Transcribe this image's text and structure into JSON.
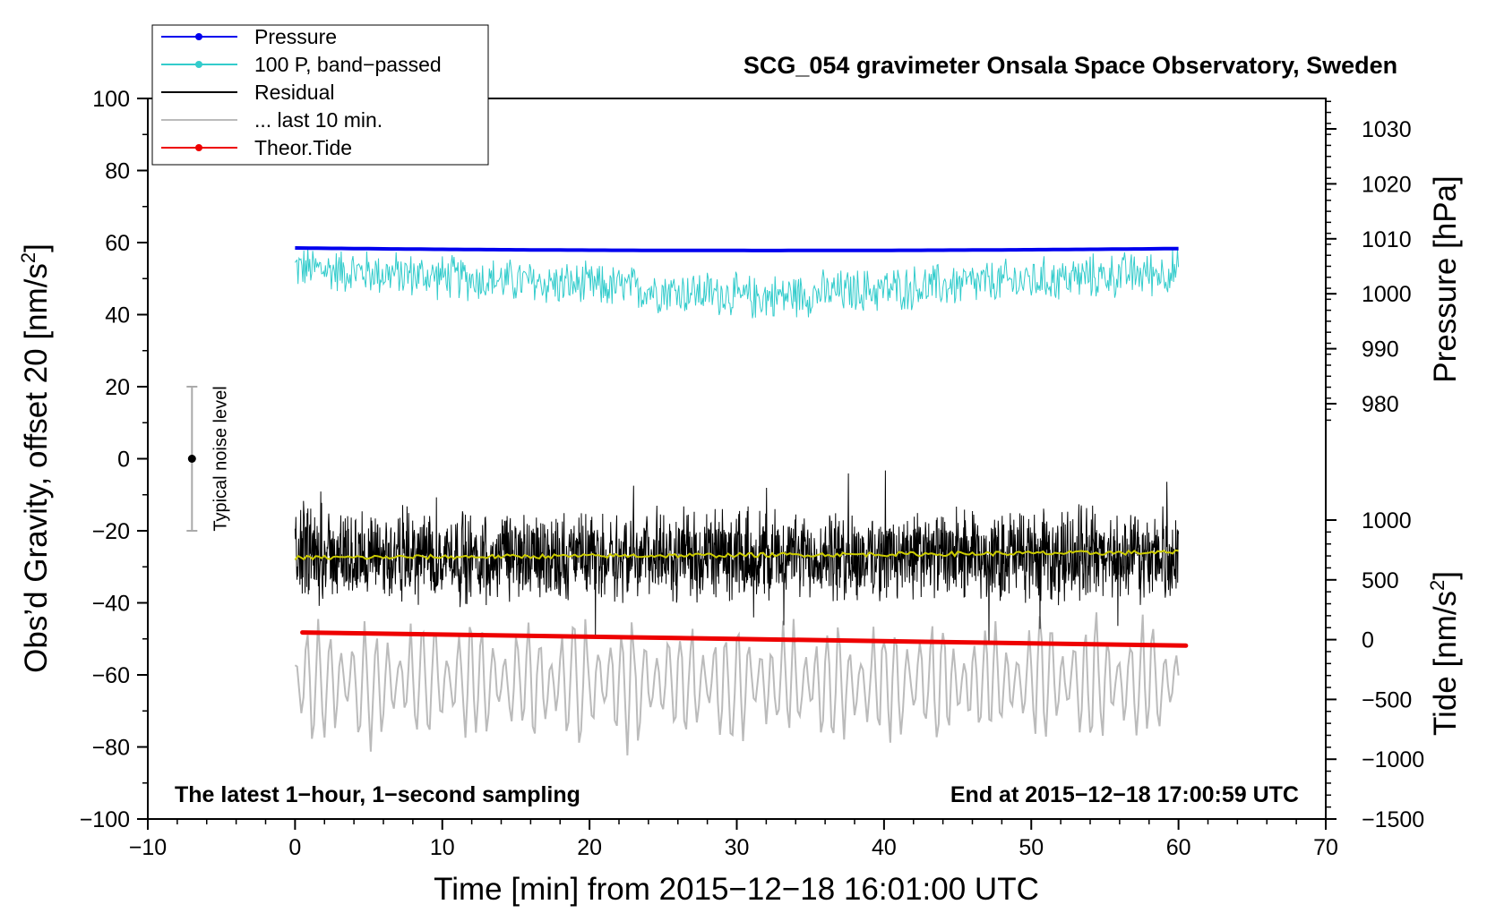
{
  "chart_data": {
    "type": "line",
    "title": "SCG_054 gravimeter Onsala Space Observatory, Sweden",
    "xlabel": "Time [min] from 2015−12−18 16:01:00 UTC",
    "ylabel_left": "Obs’d Gravity, offset 20 [nm/s",
    "ylabel_left_sup": "2",
    "ylabel_left_end": "]",
    "ylabel_right_pressure": "Pressure [hPa]",
    "ylabel_right_tide": "Tide [nm/s",
    "ylabel_right_tide_sup": "2",
    "ylabel_right_tide_end": "]",
    "xlim": [
      -10,
      70
    ],
    "ylim": [
      -100,
      100
    ],
    "x_ticks": [
      -10,
      0,
      10,
      20,
      30,
      40,
      50,
      60,
      70
    ],
    "x_tick_labels": [
      "−10",
      "0",
      "10",
      "20",
      "30",
      "40",
      "50",
      "60",
      "70"
    ],
    "y_ticks": [
      100,
      80,
      60,
      40,
      20,
      0,
      -20,
      -40,
      -60,
      -80,
      -100
    ],
    "y_tick_labels": [
      "100",
      "80",
      "60",
      "40",
      "20",
      "0",
      "−20",
      "−40",
      "−60",
      "−80",
      "−100"
    ],
    "pressure_ticks": [
      1030,
      1020,
      1010,
      1000,
      990,
      980
    ],
    "pressure_tick_labels": [
      "1030",
      "1020",
      "1010",
      "1000",
      "990",
      "980"
    ],
    "tide_ticks": [
      1000,
      500,
      0,
      -500,
      -1000,
      -1500
    ],
    "tide_tick_labels": [
      "1000",
      "500",
      "0",
      "−500",
      "−1000",
      "−1500"
    ],
    "legend": [
      {
        "label": "Pressure",
        "color": "#0000ee",
        "marker": true
      },
      {
        "label": "100 P, band−passed",
        "color": "#33cccc",
        "marker": true
      },
      {
        "label": "Residual",
        "color": "#000000",
        "marker": false
      },
      {
        "label": "... last 10 min.",
        "color": "#bbbbbb",
        "marker": false
      },
      {
        "label": "Theor.Tide",
        "color": "#ee0000",
        "marker": true
      }
    ],
    "legend_position": "top-left",
    "series": [
      {
        "name": "Pressure",
        "color": "#0000ee",
        "x_range": [
          0,
          60
        ],
        "y_start": 58.5,
        "y_mid": 57.8,
        "y_end": 58.5
      },
      {
        "name": "100 P, band−passed",
        "color": "#33cccc",
        "x_range": [
          0,
          60
        ],
        "y_start": 53,
        "y_mid": 45,
        "y_end": 52,
        "amplitude": 6
      },
      {
        "name": "Residual",
        "color": "#000000",
        "x_range": [
          0,
          60
        ],
        "y_mean": -27,
        "amplitude": 12
      },
      {
        "name": "Residual smoothed",
        "color": "#cccc00",
        "x_range": [
          0,
          60
        ],
        "y_start": -27.5,
        "y_end": -26
      },
      {
        "name": "... last 10 min.",
        "color": "#bbbbbb",
        "x_range": [
          0,
          60
        ],
        "y_mean": -62,
        "amplitude": 12
      },
      {
        "name": "Theor.Tide",
        "color": "#ee0000",
        "x_range": [
          0.5,
          60.5
        ],
        "tide_start": 60,
        "tide_end": -50
      }
    ],
    "noise_bar": {
      "label": "Typical noise level",
      "x": -7,
      "y_low": -20,
      "y_high": 20,
      "y_center": 0
    },
    "annotations": {
      "left": "The latest 1−hour, 1−second sampling",
      "right": "End at 2015−12−18 17:00:59 UTC"
    }
  }
}
